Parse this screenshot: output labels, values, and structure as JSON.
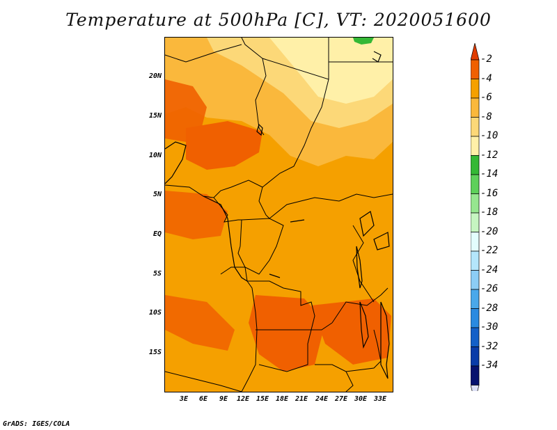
{
  "title": "Temperature at 500hPa [C], VT: 2020051600",
  "footer": "GrADS: IGES/COLA",
  "map": {
    "lat_labels": [
      "20N",
      "15N",
      "10N",
      "5N",
      "EQ",
      "5S",
      "10S",
      "15S"
    ],
    "lon_labels": [
      "3E",
      "6E",
      "9E",
      "12E",
      "15E",
      "18E",
      "21E",
      "24E",
      "27E",
      "30E",
      "33E"
    ]
  },
  "colorbar": {
    "labels": [
      "-2",
      "-4",
      "-6",
      "-8",
      "-10",
      "-12",
      "-14",
      "-16",
      "-18",
      "-20",
      "-22",
      "-24",
      "-26",
      "-28",
      "-30",
      "-32",
      "-34"
    ],
    "colors": [
      "#e03c00",
      "#f06000",
      "#f5a000",
      "#fab83c",
      "#fcd878",
      "#fff0a8",
      "#34b835",
      "#5ed05a",
      "#96e68f",
      "#c6f5c1",
      "#e3fdfd",
      "#b4e6fb",
      "#8ccdf5",
      "#4aa8ea",
      "#2a8ae0",
      "#1460c8",
      "#0a3ca8",
      "#07126e",
      "#dde0f5"
    ]
  }
}
